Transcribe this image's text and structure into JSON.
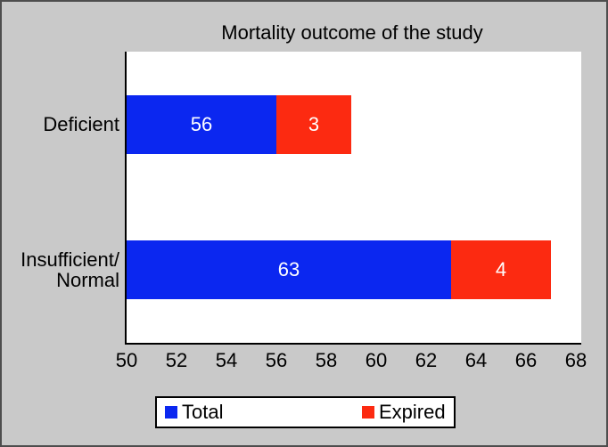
{
  "chart_data": {
    "type": "bar",
    "orientation": "horizontal",
    "stacked": true,
    "title": "Mortality outcome of the study",
    "categories": [
      "Deficient",
      "Insufficient/Normal"
    ],
    "category_label_lines": [
      [
        "Deficient"
      ],
      [
        "Insufficient/",
        "Normal"
      ]
    ],
    "series": [
      {
        "name": "Total",
        "color": "#0b27f0",
        "values": [
          56,
          63
        ]
      },
      {
        "name": "Expired",
        "color": "#fc2a11",
        "values": [
          3,
          4
        ]
      }
    ],
    "x_axis": {
      "min": 50,
      "max": 68,
      "tick_step": 2,
      "ticks": [
        50,
        52,
        54,
        56,
        58,
        60,
        62,
        64,
        66,
        68
      ]
    },
    "ylim_note": "bars start at axis minimum 50; Expired stacked after Total",
    "grid": "off",
    "legend_position": "bottom",
    "colors": {
      "background": "#c9c9c9",
      "plot_background": "#ffffff",
      "axis_line": "#000000",
      "bar_value_text": "#ffffff",
      "outer_border": "#4d4d4d"
    }
  }
}
